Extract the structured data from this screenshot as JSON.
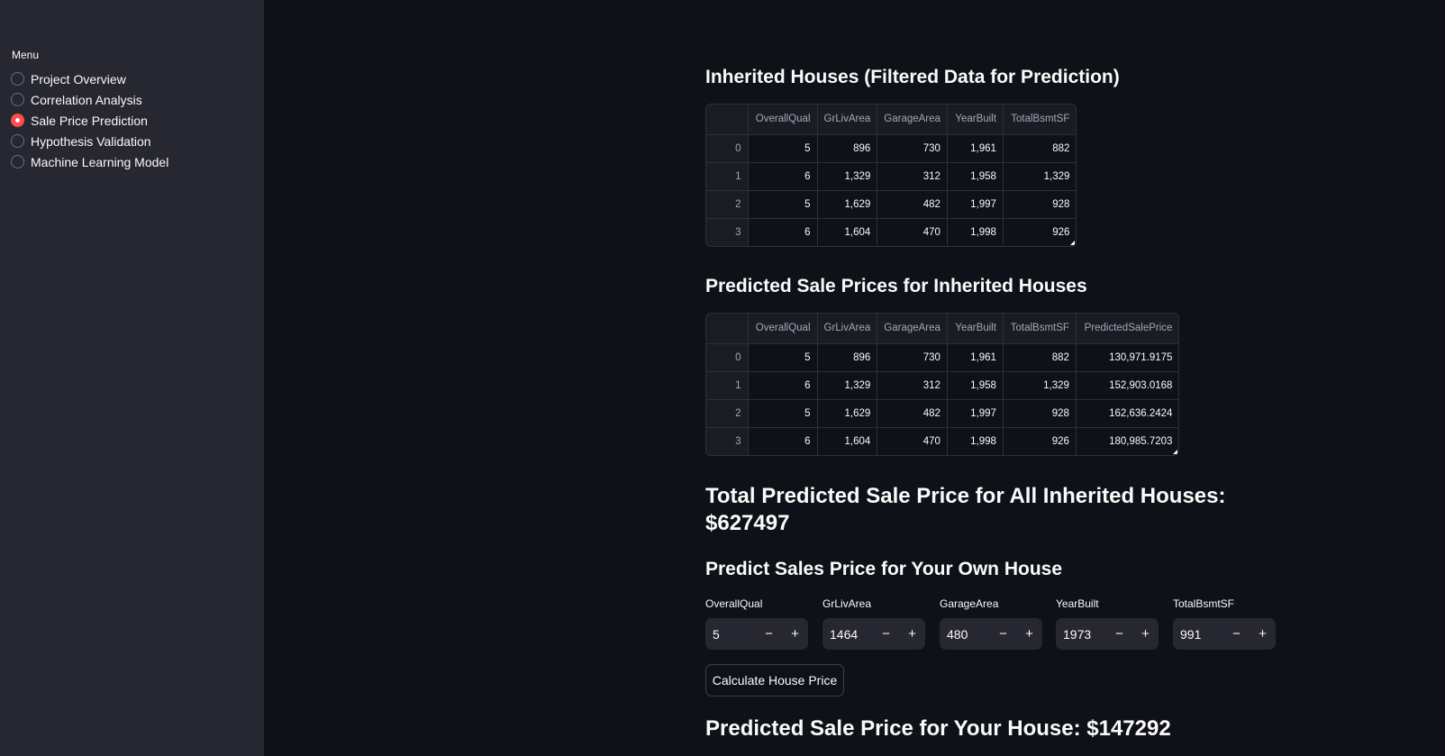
{
  "sidebar": {
    "menu_label": "Menu",
    "items": [
      {
        "label": "Project Overview",
        "selected": false
      },
      {
        "label": "Correlation Analysis",
        "selected": false
      },
      {
        "label": "Sale Price Prediction",
        "selected": true
      },
      {
        "label": "Hypothesis Validation",
        "selected": false
      },
      {
        "label": "Machine Learning Model",
        "selected": false
      }
    ]
  },
  "main": {
    "inherited_title": "Inherited Houses (Filtered Data for Prediction)",
    "inherited_table": {
      "columns": [
        "",
        "OverallQual",
        "GrLivArea",
        "GarageArea",
        "YearBuilt",
        "TotalBsmtSF"
      ],
      "rows": [
        [
          "0",
          "5",
          "896",
          "730",
          "1,961",
          "882"
        ],
        [
          "1",
          "6",
          "1,329",
          "312",
          "1,958",
          "1,329"
        ],
        [
          "2",
          "5",
          "1,629",
          "482",
          "1,997",
          "928"
        ],
        [
          "3",
          "6",
          "1,604",
          "470",
          "1,998",
          "926"
        ]
      ]
    },
    "predicted_title": "Predicted Sale Prices for Inherited Houses",
    "predicted_table": {
      "columns": [
        "",
        "OverallQual",
        "GrLivArea",
        "GarageArea",
        "YearBuilt",
        "TotalBsmtSF",
        "PredictedSalePrice"
      ],
      "rows": [
        [
          "0",
          "5",
          "896",
          "730",
          "1,961",
          "882",
          "130,971.9175"
        ],
        [
          "1",
          "6",
          "1,329",
          "312",
          "1,958",
          "1,329",
          "152,903.0168"
        ],
        [
          "2",
          "5",
          "1,629",
          "482",
          "1,997",
          "928",
          "162,636.2424"
        ],
        [
          "3",
          "6",
          "1,604",
          "470",
          "1,998",
          "926",
          "180,985.7203"
        ]
      ]
    },
    "total_line1": "Total Predicted Sale Price for All Inherited Houses:",
    "total_line2": "$627497",
    "own_title": "Predict Sales Price for Your Own House",
    "inputs": [
      {
        "label": "OverallQual",
        "value": "5"
      },
      {
        "label": "GrLivArea",
        "value": "1464"
      },
      {
        "label": "GarageArea",
        "value": "480"
      },
      {
        "label": "YearBuilt",
        "value": "1973"
      },
      {
        "label": "TotalBsmtSF",
        "value": "991"
      }
    ],
    "minus_glyph": "−",
    "plus_glyph": "+",
    "calc_button": "Calculate House Price",
    "result": "Predicted Sale Price for Your House: $147292"
  }
}
